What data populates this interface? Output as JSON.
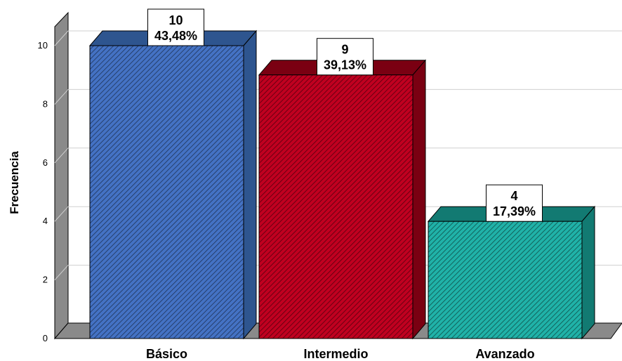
{
  "chart_data": {
    "type": "bar",
    "categories": [
      "Básico",
      "Intermedio",
      "Avanzado"
    ],
    "values": [
      10,
      9,
      4
    ],
    "percent_labels": [
      "43,48%",
      "39,13%",
      "17,39%"
    ],
    "ylabel": "Frecuencia",
    "ylim": [
      0,
      10.5
    ],
    "yticks": [
      "0",
      "2",
      "4",
      "6",
      "8",
      "10"
    ],
    "grid": true,
    "colors": [
      "#4472c4",
      "#c00020",
      "#20b2a8"
    ],
    "dark_colors": [
      "#2e558f",
      "#7a0012",
      "#127a72"
    ]
  }
}
